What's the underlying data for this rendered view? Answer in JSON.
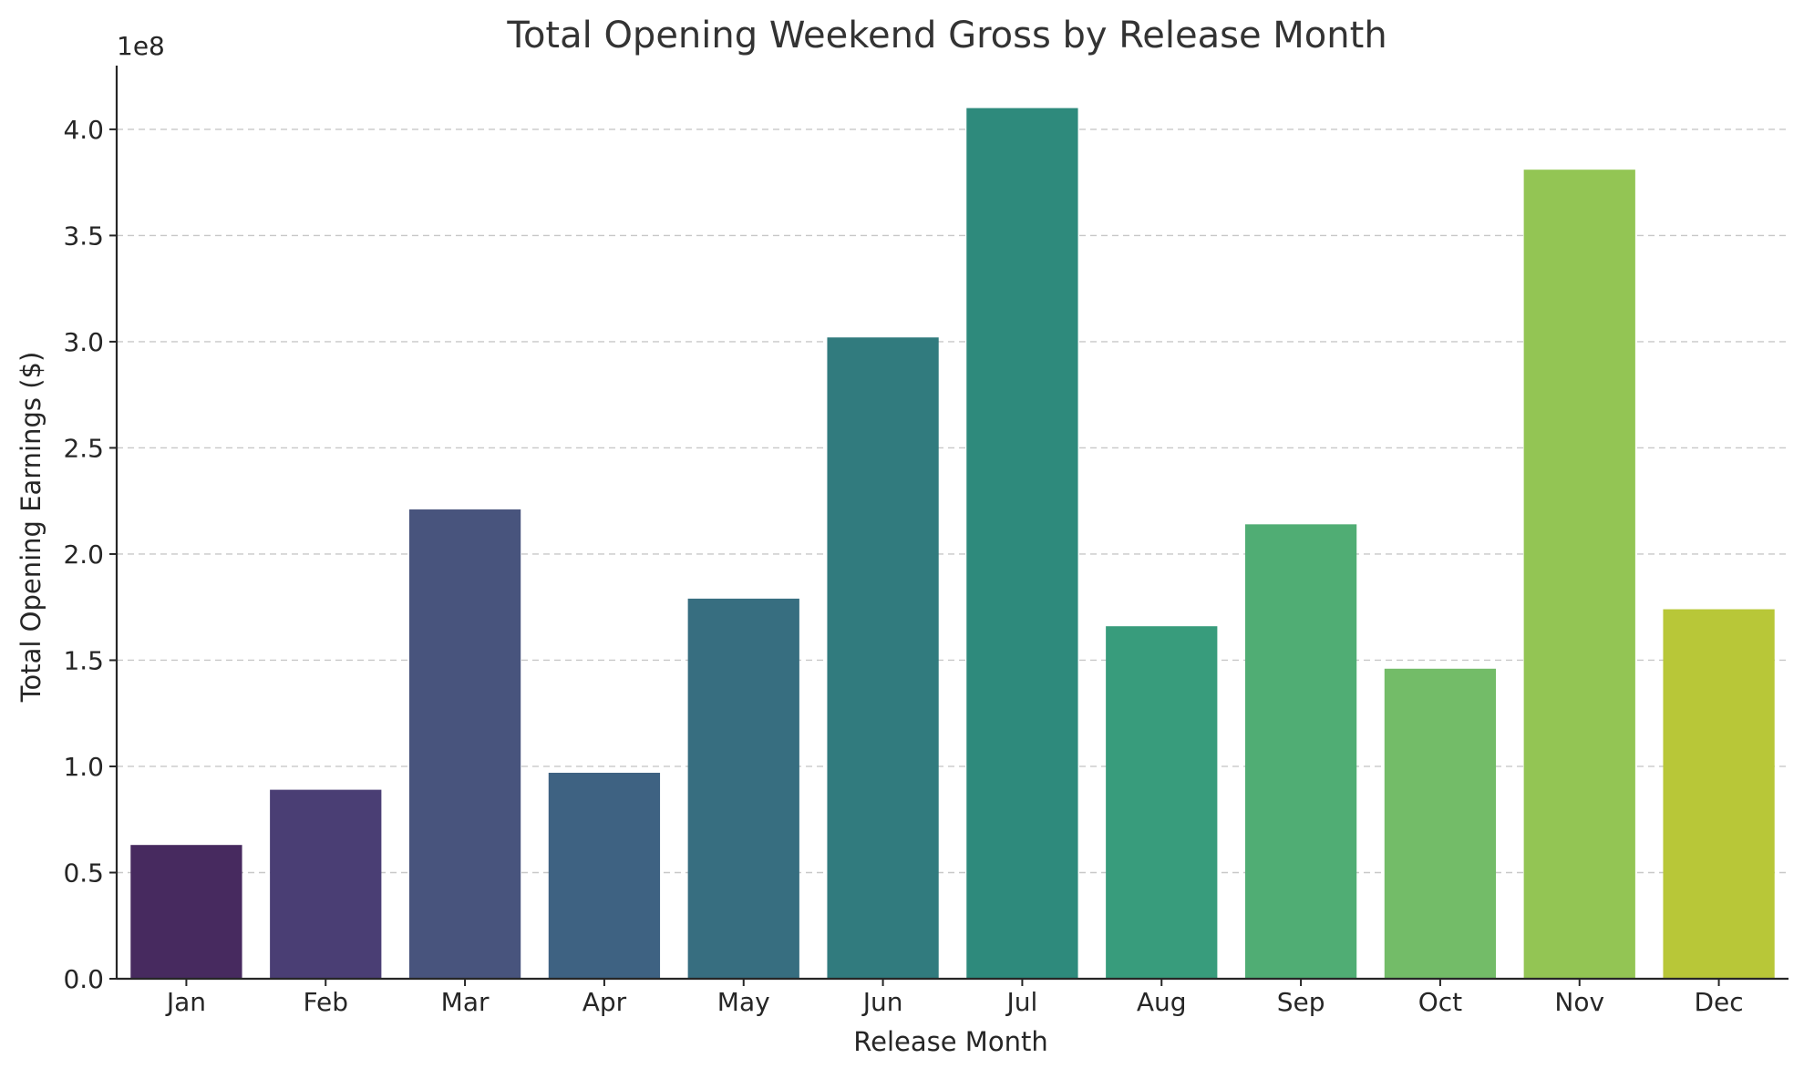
{
  "chart_data": {
    "type": "bar",
    "title": "Total Opening Weekend Gross by Release Month",
    "xlabel": "Release Month",
    "ylabel": "Total Opening Earnings ($)",
    "y_offset_label": "1e8",
    "categories": [
      "Jan",
      "Feb",
      "Mar",
      "Apr",
      "May",
      "Jun",
      "Jul",
      "Aug",
      "Sep",
      "Oct",
      "Nov",
      "Dec"
    ],
    "values": [
      63000000,
      89000000,
      221000000,
      97000000,
      179000000,
      302000000,
      410000000,
      166000000,
      214000000,
      146000000,
      381000000,
      174000000
    ],
    "colors": [
      "#472a5f",
      "#4a3e74",
      "#48547d",
      "#3e6282",
      "#376e80",
      "#317b7e",
      "#2e8a7c",
      "#389c7c",
      "#50ad74",
      "#73bc68",
      "#93c554",
      "#b8c738"
    ],
    "ylim": [
      0,
      430000000
    ],
    "yticks": [
      0,
      50000000,
      100000000,
      150000000,
      200000000,
      250000000,
      300000000,
      350000000,
      400000000
    ],
    "ytick_labels": [
      "0.0",
      "0.5",
      "1.0",
      "1.5",
      "2.0",
      "2.5",
      "3.0",
      "3.5",
      "4.0"
    ],
    "grid": "y-dashed",
    "legend": "none"
  }
}
